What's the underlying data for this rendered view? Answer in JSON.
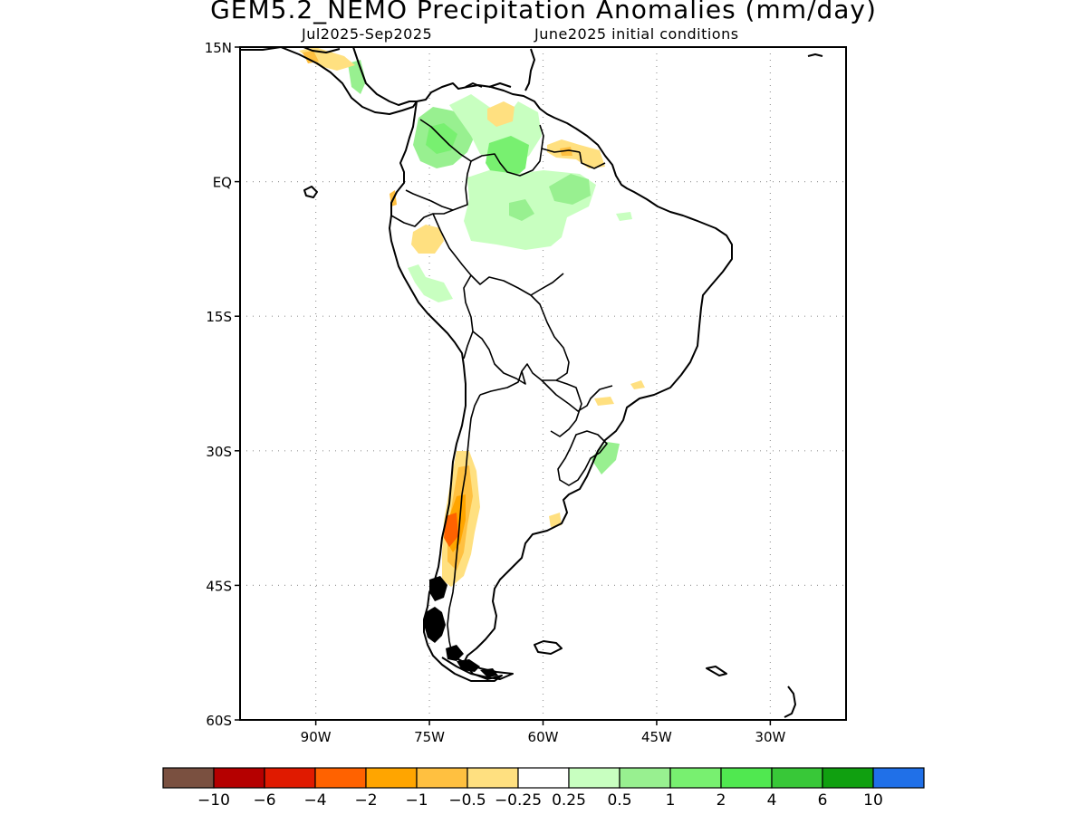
{
  "title": "GEM5.2_NEMO Precipitation Anomalies (mm/day)",
  "subtitle_left": "Jul2025-Sep2025",
  "subtitle_right": "June2025 initial conditions",
  "map": {
    "lon_range": [
      -100,
      -20
    ],
    "lat_range": [
      -60,
      15
    ],
    "lat_ticks": [
      {
        "value": 15,
        "label": "15N"
      },
      {
        "value": 0,
        "label": "EQ"
      },
      {
        "value": -15,
        "label": "15S"
      },
      {
        "value": -30,
        "label": "30S"
      },
      {
        "value": -45,
        "label": "45S"
      },
      {
        "value": -60,
        "label": "60S"
      }
    ],
    "lon_ticks": [
      {
        "value": -90,
        "label": "90W"
      },
      {
        "value": -75,
        "label": "75W"
      },
      {
        "value": -60,
        "label": "60W"
      },
      {
        "value": -45,
        "label": "45W"
      },
      {
        "value": -30,
        "label": "30W"
      }
    ],
    "grid": true
  },
  "colorbar": {
    "colors": [
      "#7a5040",
      "#b50000",
      "#e01a00",
      "#ff6200",
      "#ffa500",
      "#ffc040",
      "#ffe080",
      "#ffffff",
      "#c8ffc0",
      "#98f090",
      "#78f070",
      "#50e850",
      "#38c838",
      "#10a010",
      "#2070e8"
    ],
    "labels": [
      "-10",
      "-6",
      "-4",
      "-2",
      "-1",
      "-0.5",
      "-0.25",
      "0.25",
      "0.5",
      "1",
      "2",
      "4",
      "6",
      "10"
    ]
  }
}
